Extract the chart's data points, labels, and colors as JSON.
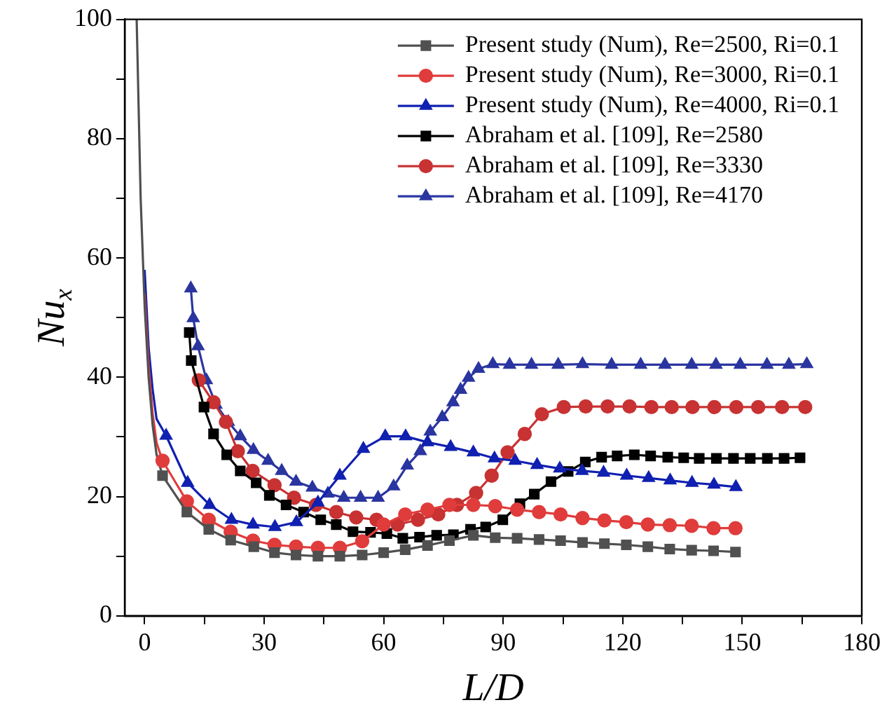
{
  "chart_data": {
    "type": "line",
    "xlabel": "L/D",
    "ylabel": "Nu$_{x}$",
    "xlim": [
      -5,
      180
    ],
    "xticks": [
      0,
      {
        "value": 15,
        "label": null
      },
      30,
      {
        "value": 45,
        "label": null
      },
      60,
      {
        "value": 75,
        "label": null
      },
      90,
      {
        "value": 105,
        "label": null
      },
      120,
      {
        "value": 135,
        "label": null
      },
      150,
      {
        "value": 165,
        "label": null
      },
      180
    ],
    "ylim": [
      0,
      100
    ],
    "yticks": [
      0,
      {
        "value": 10,
        "label": null
      },
      20,
      {
        "value": 30,
        "label": null
      },
      40,
      {
        "value": 50,
        "label": null
      },
      60,
      {
        "value": 70,
        "label": null
      },
      80,
      {
        "value": 90,
        "label": null
      },
      100
    ],
    "grid": false,
    "legend": "top right",
    "line_style": "solid",
    "series": [
      {
        "name": "Present study (Num), Re=2500, Ri=0.1",
        "color": "#505050",
        "marker": "square",
        "x": [
          4.5,
          10.6,
          16.1,
          21.6,
          27.4,
          32.6,
          38,
          43.5,
          49,
          54.6,
          60,
          65.4,
          71,
          76.5,
          82.5,
          88,
          93.5,
          99,
          104.4,
          109.9,
          115.4,
          120.9,
          126.3,
          131.8,
          137.3,
          142.8,
          148.3
        ],
        "values": [
          23.5,
          17.4,
          14.5,
          12.7,
          11.6,
          10.6,
          10.2,
          10,
          10,
          10.2,
          10.6,
          11.1,
          11.8,
          12.6,
          13.5,
          13.1,
          13,
          12.8,
          12.6,
          12.3,
          12.1,
          11.9,
          11.6,
          11.2,
          11,
          10.9,
          10.7
        ]
      },
      {
        "name": "Present study (Num), Re=3000, Ri=0.1",
        "color": "#e03c3c",
        "marker": "circle",
        "x": [
          4.5,
          10.6,
          16.1,
          21.6,
          27.2,
          32.6,
          38,
          43.5,
          49,
          54.6,
          60,
          65.4,
          71,
          76.5,
          82.5,
          88,
          93.5,
          99,
          104.4,
          109.9,
          115.4,
          120.9,
          126.3,
          131.8,
          137.3,
          142.8,
          148.3
        ],
        "values": [
          26,
          19.2,
          16.1,
          14.1,
          12.6,
          11.9,
          11.6,
          11.4,
          11.4,
          12.5,
          15.3,
          17,
          17.8,
          18.6,
          18.6,
          18.4,
          17.8,
          17.4,
          17,
          16.4,
          16,
          15.7,
          15.3,
          15.2,
          15.1,
          14.7,
          14.7
        ]
      },
      {
        "name": "Present study (Num), Re=4000, Ri=0.1",
        "color": "#1020b0",
        "marker": "triangle",
        "x": [
          5.4,
          10.8,
          16.3,
          21.8,
          27.2,
          32.7,
          38.1,
          43.5,
          49,
          54.9,
          60.4,
          65.5,
          71,
          76.8,
          82.5,
          87.8,
          93,
          98.5,
          104.2,
          109.8,
          115.2,
          121,
          126.5,
          131.9,
          137.4,
          142.9,
          148.4
        ],
        "values": [
          30.2,
          22.3,
          18.6,
          16.1,
          15.3,
          14.9,
          15.7,
          19,
          23.5,
          28,
          30.1,
          30.1,
          29.1,
          28.3,
          27.4,
          26.4,
          26,
          25.3,
          24.7,
          24.3,
          24,
          23.5,
          23.1,
          22.7,
          22.3,
          22,
          21.6
        ]
      },
      {
        "name": "Abraham et al. [109], Re=2580",
        "color": "#000000",
        "marker": "square",
        "x": [
          11.2,
          11.7,
          14.9,
          17.3,
          20.6,
          24,
          28,
          31.3,
          35.5,
          39.9,
          44.2,
          48.1,
          52.3,
          56.7,
          60.8,
          64.8,
          69,
          73.3,
          77.5,
          81.8,
          85.6,
          89.9,
          94.2,
          97.8,
          102,
          106.3,
          110.6,
          114.7,
          118.6,
          122.9,
          127,
          131.3,
          135.3,
          139.2,
          143.5,
          147.8,
          152,
          156.3,
          160.5,
          164.5
        ],
        "values": [
          47.5,
          42.8,
          35,
          30.5,
          27,
          24.3,
          22.3,
          20.2,
          18.6,
          17.4,
          16.1,
          15.3,
          14.1,
          14,
          13.8,
          13,
          13.2,
          13.5,
          13.6,
          14.5,
          14.9,
          16.1,
          18.8,
          20.4,
          22.5,
          24.2,
          25.8,
          26.6,
          26.8,
          27,
          26.8,
          26.6,
          26.5,
          26.4,
          26.4,
          26.4,
          26.4,
          26.4,
          26.4,
          26.5
        ]
      },
      {
        "name": "Abraham et al. [109], Re=3330",
        "color": "#c83232",
        "marker": "circle",
        "x": [
          13.6,
          17.3,
          20.4,
          23.4,
          27.1,
          32.6,
          37.5,
          43,
          48.1,
          53.1,
          58.2,
          63.5,
          68.6,
          73.7,
          78.4,
          83.2,
          87.1,
          91.1,
          95.4,
          99.7,
          105.2,
          110.7,
          116.2,
          121.7,
          127.2,
          132.3,
          137.5,
          143,
          148.5,
          154,
          160,
          165.8
        ],
        "values": [
          39.5,
          35.8,
          32.5,
          27.6,
          24.3,
          21.9,
          19.8,
          18.6,
          17.4,
          16.5,
          16.1,
          15.3,
          16.1,
          17,
          18.6,
          20.6,
          23.5,
          27.4,
          30.5,
          33.8,
          35,
          35.1,
          35.1,
          35.1,
          35,
          35,
          35,
          35,
          35,
          35,
          35,
          35
        ]
      },
      {
        "name": "Abraham et al. [109], Re=4170",
        "color": "#2a35a0",
        "marker": "triangle",
        "x": [
          11.6,
          12.2,
          13.4,
          15.5,
          17.9,
          21,
          24,
          27.3,
          31,
          34.4,
          38,
          42.1,
          46,
          50,
          54.2,
          58.6,
          62.5,
          65.9,
          69.2,
          71.7,
          74.7,
          77.4,
          79.3,
          81.3,
          83.8,
          87.4,
          91.6,
          97.1,
          103.8,
          109.9,
          117.2,
          124.5,
          130.6,
          137.3,
          143.4,
          149.5,
          156.2,
          161.7,
          166.2
        ],
        "values": [
          54.9,
          49.9,
          45.2,
          39.5,
          35.4,
          32.5,
          30.1,
          27.8,
          26,
          24.3,
          22.5,
          21.5,
          20.5,
          19.8,
          19.8,
          19.8,
          21.7,
          25.2,
          27.6,
          30.9,
          33.3,
          35.8,
          37.9,
          39.9,
          41.4,
          42.2,
          42.1,
          42.1,
          42.1,
          42.2,
          42.1,
          42.1,
          42.1,
          42.1,
          42.1,
          42.1,
          42.1,
          42.1,
          42.2
        ]
      },
      {
        "color": "#505050",
        "marker": "none",
        "x": [
          -2,
          -1,
          0,
          1,
          2,
          3,
          4.5
        ],
        "values": [
          100,
          70,
          52,
          40,
          32,
          27,
          23.5
        ]
      },
      {
        "color": "#e03c3c",
        "marker": "none",
        "x": [
          0,
          1,
          2,
          3,
          4.5
        ],
        "values": [
          54,
          42,
          34,
          29,
          26
        ]
      },
      {
        "color": "#1020b0",
        "marker": "none",
        "x": [
          0,
          1,
          2,
          3,
          5.4
        ],
        "values": [
          58,
          45,
          38,
          33,
          30.2
        ]
      }
    ]
  }
}
